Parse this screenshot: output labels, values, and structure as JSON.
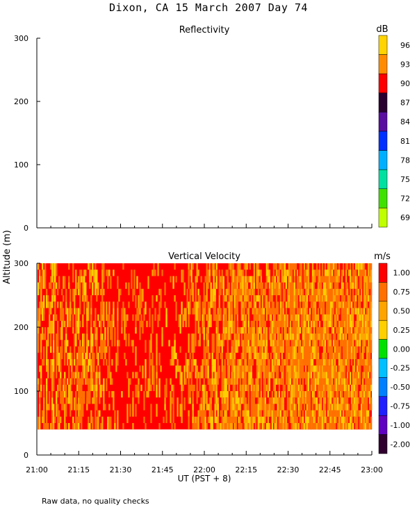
{
  "page": {
    "title": "Dixon, CA 15 March 2007  Day  74",
    "footnote": "Raw data, no quality checks"
  },
  "shared": {
    "ylabel": "Altitude (m)",
    "xlabel": "UT  (PST + 8)"
  },
  "chart_data": [
    {
      "type": "heatmap",
      "title": "Reflectivity",
      "xlim": [
        "21:00",
        "23:00"
      ],
      "ylim": [
        0,
        300
      ],
      "yticks": [
        0,
        100,
        200,
        300
      ],
      "xticks": [
        "21:00",
        "21:15",
        "21:30",
        "21:45",
        "22:00",
        "22:15",
        "22:30",
        "22:45",
        "23:00"
      ],
      "colorbar": {
        "unit": "dB",
        "labels": [
          "96",
          "93",
          "90",
          "87",
          "84",
          "81",
          "78",
          "75",
          "72",
          "69"
        ],
        "colors": [
          "#ffd400",
          "#ff8c00",
          "#ff0000",
          "#2a0030",
          "#5a0fa0",
          "#0030ff",
          "#00b0ff",
          "#00e0a0",
          "#40e000",
          "#c0ff00"
        ]
      },
      "data": "empty"
    },
    {
      "type": "heatmap",
      "title": "Vertical Velocity",
      "xlim": [
        "21:00",
        "23:00"
      ],
      "ylim": [
        0,
        300
      ],
      "data_altitude_range": [
        40,
        300
      ],
      "yticks": [
        0,
        100,
        200,
        300
      ],
      "xticks": [
        "21:00",
        "21:15",
        "21:30",
        "21:45",
        "22:00",
        "22:15",
        "22:30",
        "22:45",
        "23:00"
      ],
      "colorbar": {
        "unit": "m/s",
        "labels": [
          "1.00",
          "0.75",
          "0.50",
          "0.25",
          "0.00",
          "-0.25",
          "-0.50",
          "-0.75",
          "-1.00",
          "-2.00"
        ],
        "colors": [
          "#ff0000",
          "#ff7000",
          "#ffa500",
          "#ffd000",
          "#00e000",
          "#00c0ff",
          "#0080ff",
          "#2020ff",
          "#6000c0",
          "#300030"
        ]
      },
      "dominant_values": [
        "red (>1.00 m/s)",
        "orange",
        "yellow"
      ]
    }
  ]
}
